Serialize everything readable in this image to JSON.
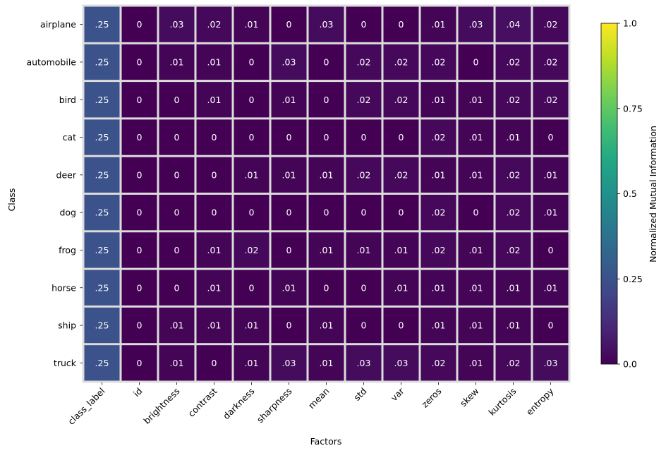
{
  "chart_data": {
    "type": "heatmap",
    "title": "",
    "xlabel": "Factors",
    "ylabel": "Class",
    "x_categories": [
      "class_label",
      "id",
      "brightness",
      "contrast",
      "darkness",
      "sharpness",
      "mean",
      "std",
      "var",
      "zeros",
      "skew",
      "kurtosis",
      "entropy"
    ],
    "y_categories": [
      "airplane",
      "automobile",
      "bird",
      "cat",
      "deer",
      "dog",
      "frog",
      "horse",
      "ship",
      "truck"
    ],
    "values": [
      [
        0.25,
        0,
        0.03,
        0.02,
        0.01,
        0,
        0.03,
        0,
        0,
        0.01,
        0.03,
        0.04,
        0.02
      ],
      [
        0.25,
        0,
        0.01,
        0.01,
        0,
        0.03,
        0,
        0.02,
        0.02,
        0.02,
        0,
        0.02,
        0.02
      ],
      [
        0.25,
        0,
        0,
        0.01,
        0,
        0.01,
        0,
        0.02,
        0.02,
        0.01,
        0.01,
        0.02,
        0.02
      ],
      [
        0.25,
        0,
        0,
        0,
        0,
        0,
        0,
        0,
        0,
        0.02,
        0.01,
        0.01,
        0
      ],
      [
        0.25,
        0,
        0,
        0,
        0.01,
        0.01,
        0.01,
        0.02,
        0.02,
        0.01,
        0.01,
        0.02,
        0.01
      ],
      [
        0.25,
        0,
        0,
        0,
        0,
        0,
        0,
        0,
        0,
        0.02,
        0,
        0.02,
        0.01
      ],
      [
        0.25,
        0,
        0,
        0.01,
        0.02,
        0,
        0.01,
        0.01,
        0.01,
        0.02,
        0.01,
        0.02,
        0
      ],
      [
        0.25,
        0,
        0,
        0.01,
        0,
        0.01,
        0,
        0,
        0.01,
        0.01,
        0.01,
        0.01,
        0.01
      ],
      [
        0.25,
        0,
        0.01,
        0.01,
        0.01,
        0,
        0.01,
        0,
        0,
        0.01,
        0.01,
        0.01,
        0
      ],
      [
        0.25,
        0,
        0.01,
        0,
        0.01,
        0.03,
        0.01,
        0.03,
        0.03,
        0.02,
        0.01,
        0.02,
        0.03
      ]
    ],
    "value_labels": [
      [
        ".25",
        "0",
        ".03",
        ".02",
        ".01",
        "0",
        ".03",
        "0",
        "0",
        ".01",
        ".03",
        ".04",
        ".02"
      ],
      [
        ".25",
        "0",
        ".01",
        ".01",
        "0",
        ".03",
        "0",
        ".02",
        ".02",
        ".02",
        "0",
        ".02",
        ".02"
      ],
      [
        ".25",
        "0",
        "0",
        ".01",
        "0",
        ".01",
        "0",
        ".02",
        ".02",
        ".01",
        ".01",
        ".02",
        ".02"
      ],
      [
        ".25",
        "0",
        "0",
        "0",
        "0",
        "0",
        "0",
        "0",
        "0",
        ".02",
        ".01",
        ".01",
        "0"
      ],
      [
        ".25",
        "0",
        "0",
        "0",
        ".01",
        ".01",
        ".01",
        ".02",
        ".02",
        ".01",
        ".01",
        ".02",
        ".01"
      ],
      [
        ".25",
        "0",
        "0",
        "0",
        "0",
        "0",
        "0",
        "0",
        "0",
        ".02",
        "0",
        ".02",
        ".01"
      ],
      [
        ".25",
        "0",
        "0",
        ".01",
        ".02",
        "0",
        ".01",
        ".01",
        ".01",
        ".02",
        ".01",
        ".02",
        "0"
      ],
      [
        ".25",
        "0",
        "0",
        ".01",
        "0",
        ".01",
        "0",
        "0",
        ".01",
        ".01",
        ".01",
        ".01",
        ".01"
      ],
      [
        ".25",
        "0",
        ".01",
        ".01",
        ".01",
        "0",
        ".01",
        "0",
        "0",
        ".01",
        ".01",
        ".01",
        "0"
      ],
      [
        ".25",
        "0",
        ".01",
        "0",
        ".01",
        ".03",
        ".01",
        ".03",
        ".03",
        ".02",
        ".01",
        ".02",
        ".03"
      ]
    ],
    "colorbar": {
      "label": "Normalized Mutual Information",
      "range": [
        0,
        1
      ],
      "ticks": [
        0,
        0.25,
        0.5,
        0.75,
        1
      ],
      "tick_labels": [
        "0.0",
        "0.25",
        "0.5",
        "0.75",
        "1.0"
      ],
      "colormap": "viridis"
    },
    "grid": false,
    "legend": "colorbar-right",
    "cell_border_color": "#dcdcdc",
    "text_color": "#ffffff"
  }
}
